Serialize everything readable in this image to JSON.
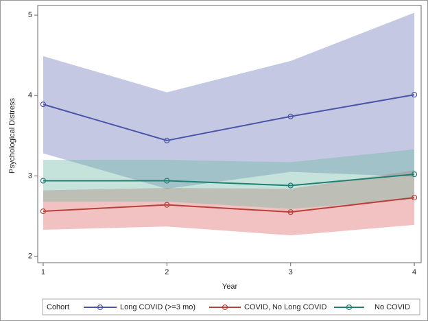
{
  "chart_data": {
    "type": "line",
    "xlabel": "Year",
    "ylabel": "Psychological Distress",
    "legend_title": "Cohort",
    "x": [
      1,
      2,
      3,
      4
    ],
    "xlim": [
      0.956,
      4.055
    ],
    "xticks": [
      1,
      2,
      3,
      4
    ],
    "ylim": [
      1.92,
      5.12
    ],
    "yticks": [
      2,
      3,
      4,
      5
    ],
    "series": [
      {
        "name": "Long COVID (>=3 mo)",
        "color": "#4a55a8",
        "band_color": "rgba(101,110,180,0.38)",
        "values": [
          3.89,
          3.44,
          3.74,
          4.01
        ],
        "upper": [
          4.49,
          4.04,
          4.43,
          5.03
        ],
        "lower": [
          3.28,
          2.84,
          3.05,
          2.99
        ]
      },
      {
        "name": "COVID, No Long COVID",
        "color": "#b8403a",
        "band_color": "rgba(222,95,95,0.38)",
        "values": [
          2.56,
          2.64,
          2.55,
          2.73
        ],
        "upper": [
          2.82,
          2.85,
          2.84,
          3.07
        ],
        "lower": [
          2.33,
          2.37,
          2.26,
          2.39
        ]
      },
      {
        "name": "No COVID",
        "color": "#1f7f73",
        "band_color": "rgba(110,185,165,0.4)",
        "values": [
          2.94,
          2.94,
          2.88,
          3.02
        ],
        "upper": [
          3.2,
          3.2,
          3.17,
          3.33
        ],
        "lower": [
          2.68,
          2.68,
          2.59,
          2.71
        ]
      }
    ]
  }
}
